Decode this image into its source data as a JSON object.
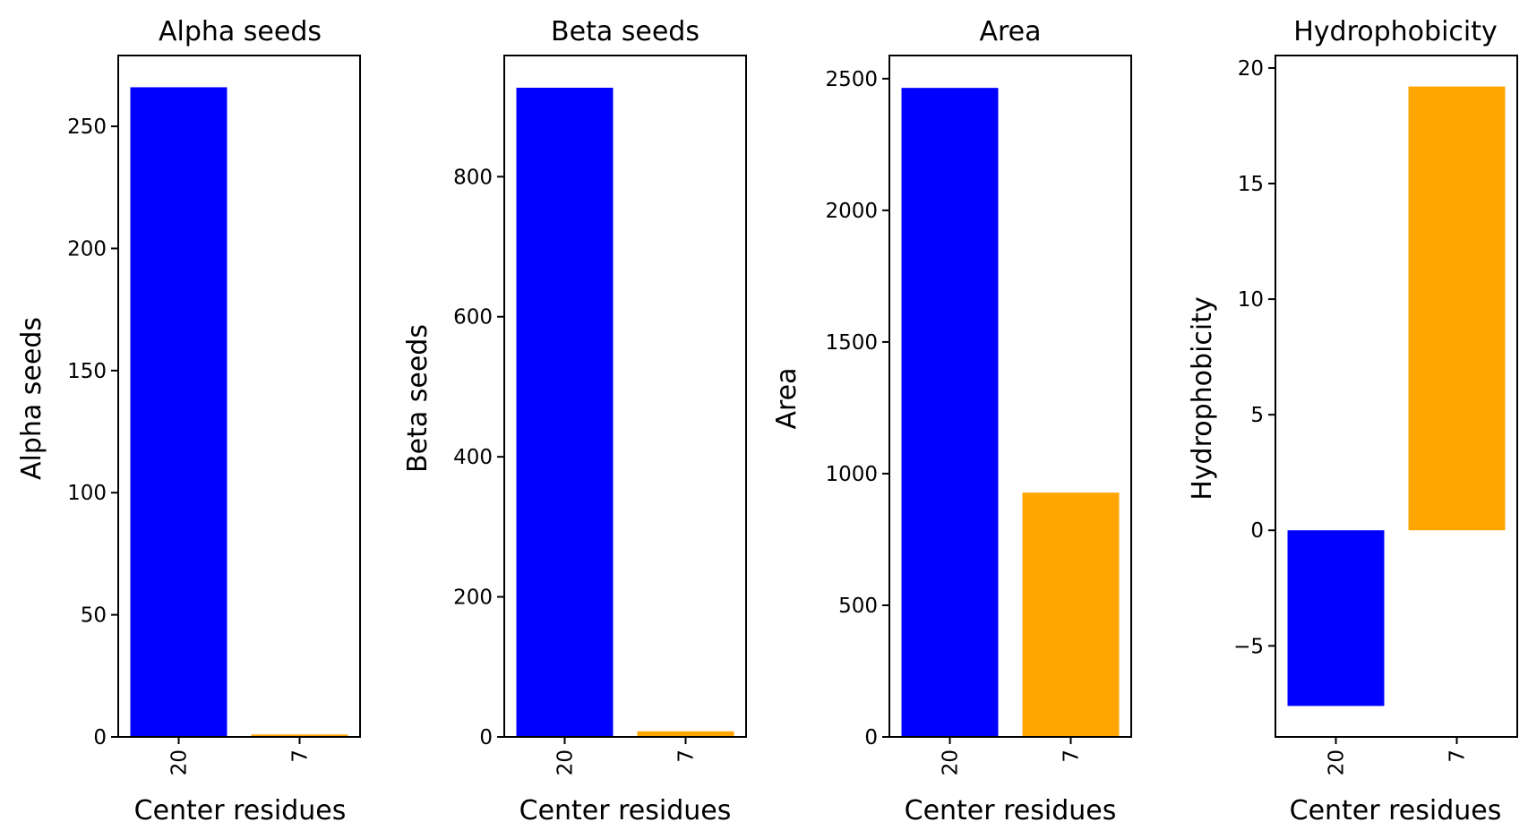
{
  "chart_data": [
    {
      "type": "bar",
      "title": "Alpha seeds",
      "xlabel": "Center residues",
      "ylabel": "Alpha seeds",
      "categories": [
        "20",
        "7"
      ],
      "values": [
        266,
        1
      ],
      "colors": [
        "#0000ff",
        "#ffa500"
      ],
      "ylim": [
        0,
        279
      ],
      "yticks": [
        0,
        50,
        100,
        150,
        200,
        250
      ],
      "ytick_labels": [
        "0",
        "50",
        "100",
        "150",
        "200",
        "250"
      ],
      "grid": false
    },
    {
      "type": "bar",
      "title": "Beta seeds",
      "xlabel": "Center residues",
      "ylabel": "Beta seeds",
      "categories": [
        "20",
        "7"
      ],
      "values": [
        927,
        8
      ],
      "colors": [
        "#0000ff",
        "#ffa500"
      ],
      "ylim": [
        0,
        973
      ],
      "yticks": [
        0,
        200,
        400,
        600,
        800
      ],
      "ytick_labels": [
        "0",
        "200",
        "400",
        "600",
        "800"
      ],
      "grid": false
    },
    {
      "type": "bar",
      "title": "Area",
      "xlabel": "Center residues",
      "ylabel": "Area",
      "categories": [
        "20",
        "7"
      ],
      "values": [
        2465,
        928
      ],
      "colors": [
        "#0000ff",
        "#ffa500"
      ],
      "ylim": [
        0,
        2588
      ],
      "yticks": [
        0,
        500,
        1000,
        1500,
        2000,
        2500
      ],
      "ytick_labels": [
        "0",
        "500",
        "1000",
        "1500",
        "2000",
        "2500"
      ],
      "grid": false
    },
    {
      "type": "bar",
      "title": "Hydrophobicity",
      "xlabel": "Center residues",
      "ylabel": "Hydrophobicity",
      "categories": [
        "20",
        "7"
      ],
      "values": [
        -7.6,
        19.2
      ],
      "colors": [
        "#0000ff",
        "#ffa500"
      ],
      "ylim": [
        -8.94,
        20.54
      ],
      "yticks": [
        -5,
        0,
        5,
        10,
        15,
        20
      ],
      "ytick_labels": [
        "−5",
        "0",
        "5",
        "10",
        "15",
        "20"
      ],
      "grid": false
    }
  ]
}
